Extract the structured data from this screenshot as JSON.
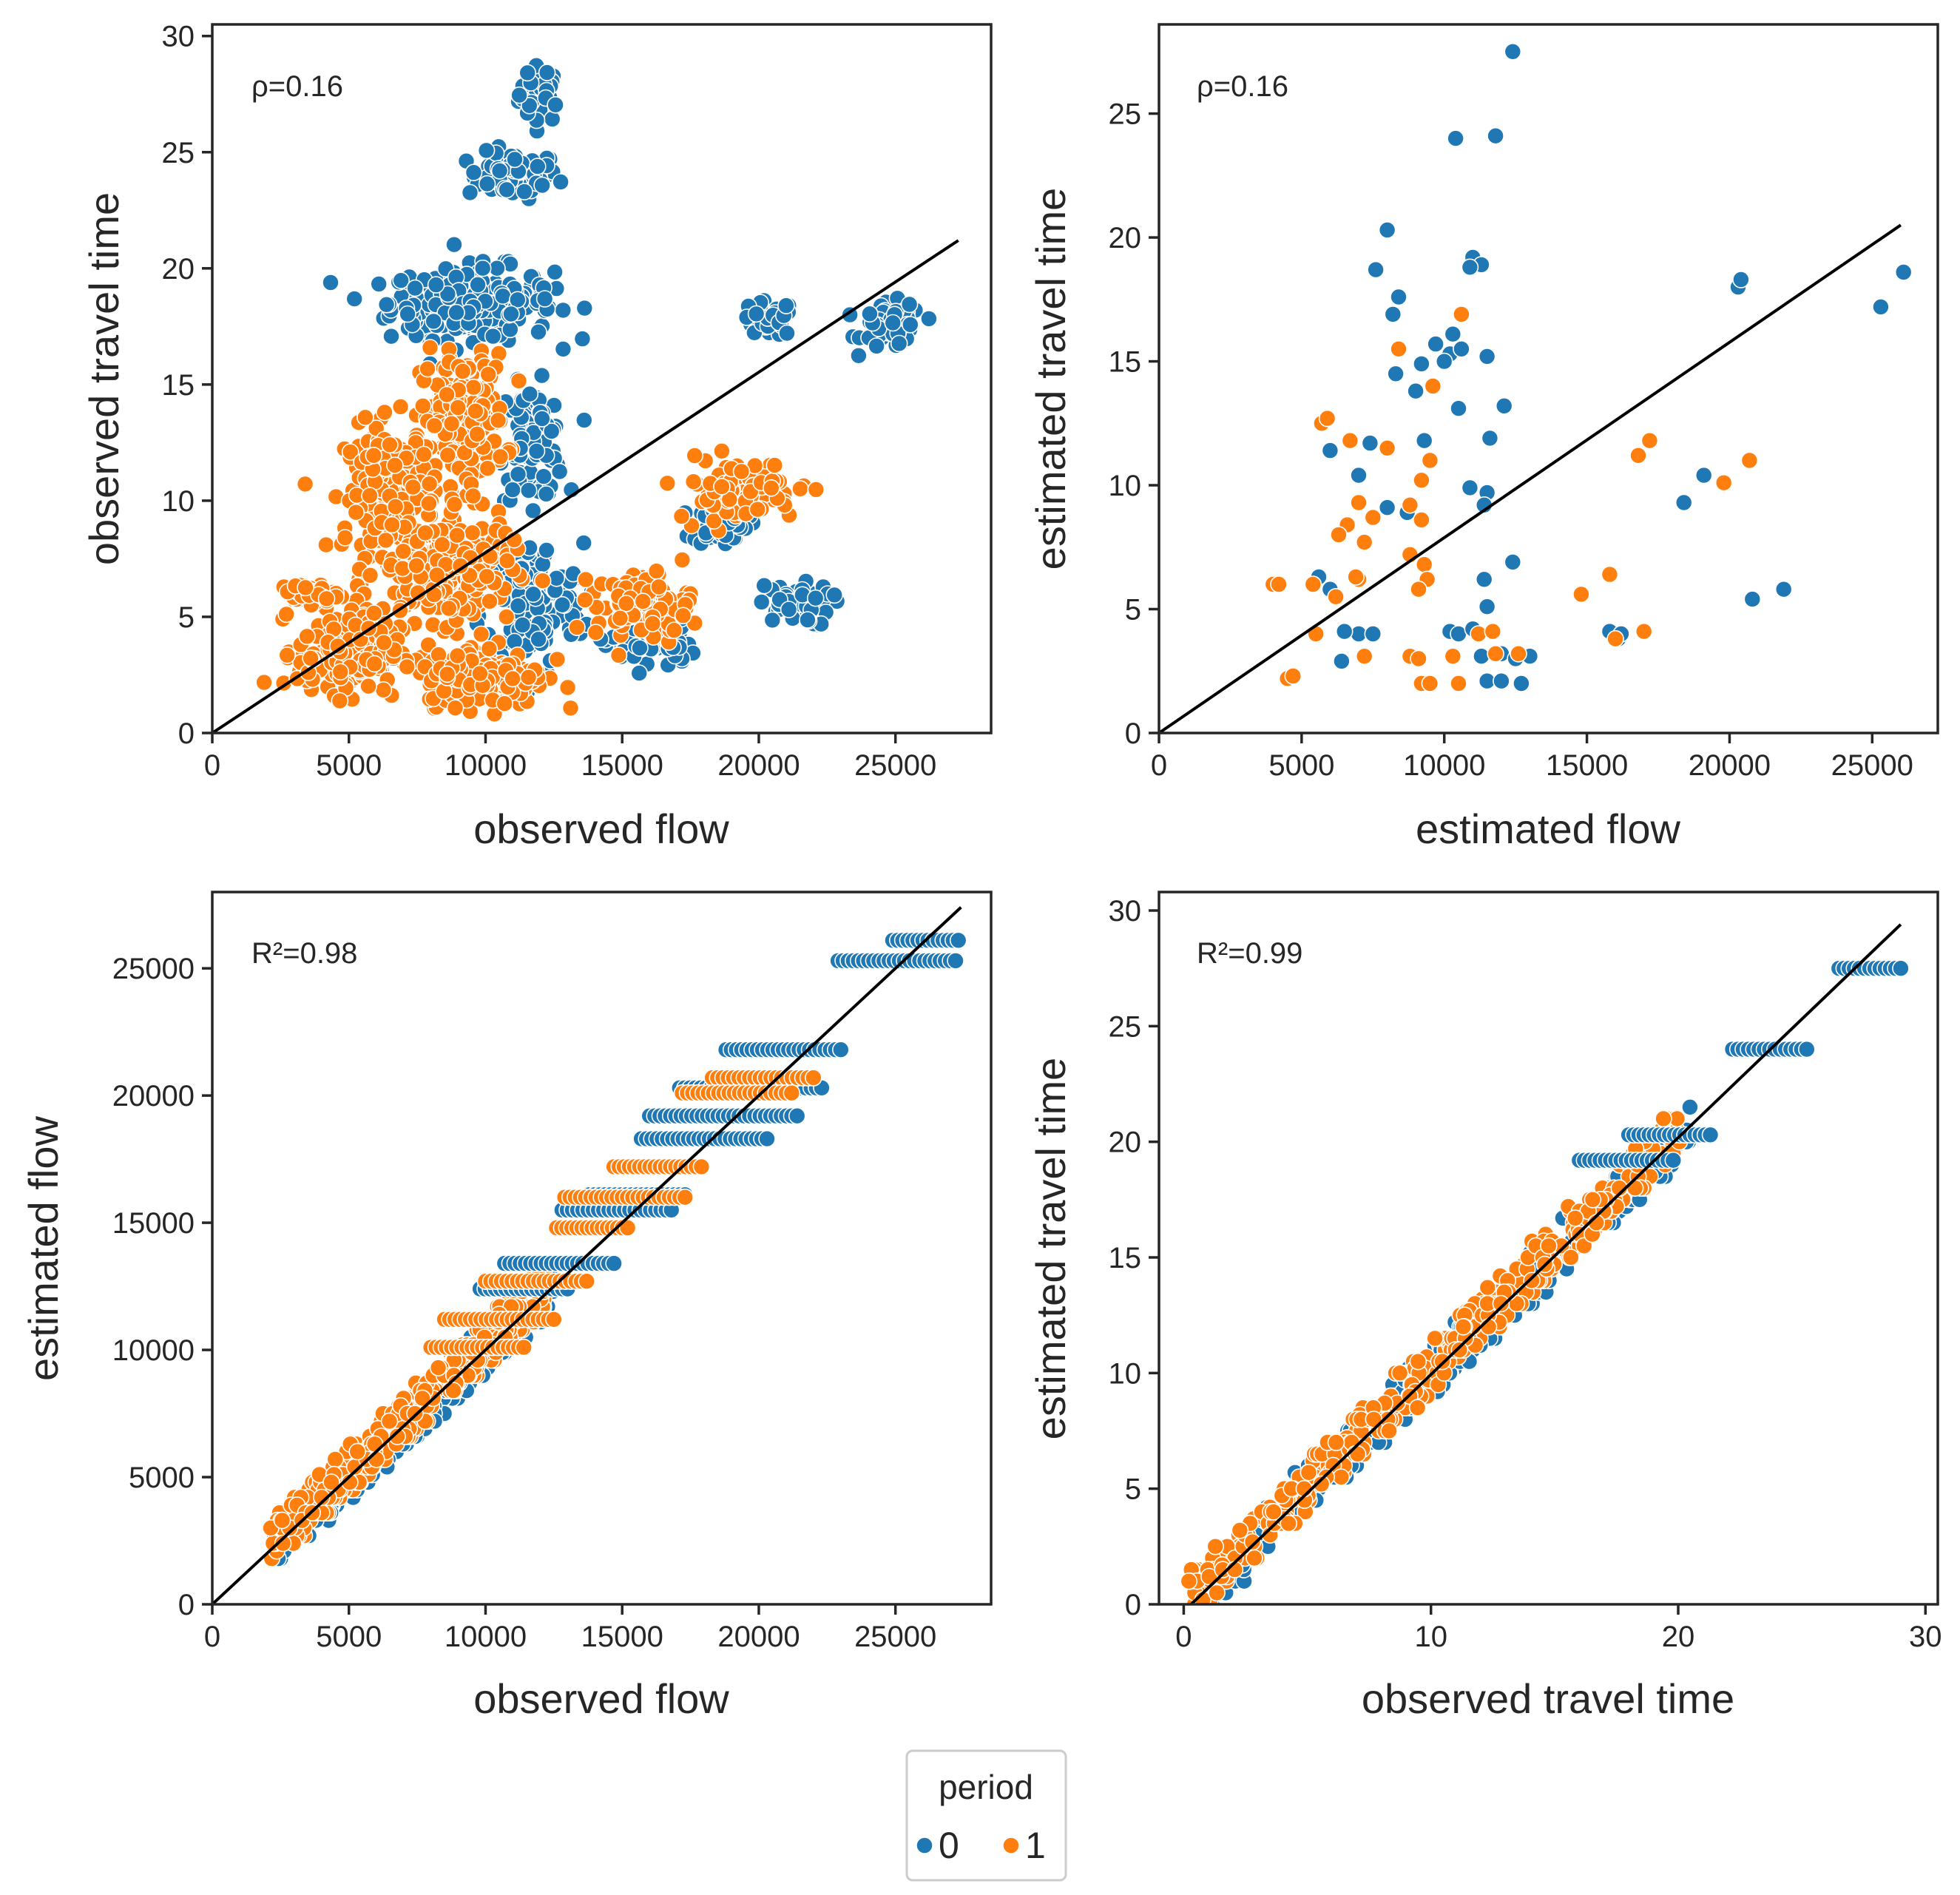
{
  "figure": {
    "legend": {
      "title": "period",
      "entries": [
        {
          "label": "0",
          "color": "#1f77b4"
        },
        {
          "label": "1",
          "color": "#ff7f0e"
        }
      ]
    }
  },
  "chart_data": [
    {
      "type": "scatter",
      "xlabel": "observed flow",
      "ylabel": "observed travel time",
      "annotation": "ρ=0.16",
      "xlim": [
        0,
        28500
      ],
      "ylim": [
        0,
        30.5
      ],
      "xticks": [
        0,
        5000,
        10000,
        15000,
        20000,
        25000
      ],
      "yticks": [
        0,
        5,
        10,
        15,
        20,
        25,
        30
      ],
      "grid": false,
      "reference_line": {
        "x": [
          0,
          27300
        ],
        "y": [
          0,
          21.2
        ]
      },
      "clusters": [
        {
          "period": 0,
          "cx": 12000,
          "cy": 27.5,
          "sx": 700,
          "sy": 1.1,
          "n": 40
        },
        {
          "period": 0,
          "cx": 11000,
          "cy": 24.0,
          "sx": 1500,
          "sy": 0.9,
          "n": 70
        },
        {
          "period": 0,
          "cx": 9500,
          "cy": 18.5,
          "sx": 2700,
          "sy": 1.4,
          "n": 260
        },
        {
          "period": 0,
          "cx": 20300,
          "cy": 17.8,
          "sx": 900,
          "sy": 0.7,
          "n": 45
        },
        {
          "period": 0,
          "cx": 24900,
          "cy": 17.5,
          "sx": 1000,
          "sy": 0.9,
          "n": 55
        },
        {
          "period": 0,
          "cx": 11700,
          "cy": 12.5,
          "sx": 1100,
          "sy": 2.2,
          "n": 90
        },
        {
          "period": 0,
          "cx": 11700,
          "cy": 5.5,
          "sx": 1700,
          "sy": 2.4,
          "n": 140
        },
        {
          "period": 0,
          "cx": 18600,
          "cy": 9.0,
          "sx": 900,
          "sy": 0.8,
          "n": 40
        },
        {
          "period": 0,
          "cx": 21300,
          "cy": 5.5,
          "sx": 1200,
          "sy": 0.8,
          "n": 60
        },
        {
          "period": 0,
          "cx": 16000,
          "cy": 3.8,
          "sx": 1500,
          "sy": 1.0,
          "n": 40
        },
        {
          "period": 1,
          "cx": 9200,
          "cy": 13.5,
          "sx": 1400,
          "sy": 2.5,
          "n": 200
        },
        {
          "period": 1,
          "cx": 6500,
          "cy": 10.5,
          "sx": 1500,
          "sy": 2.5,
          "n": 180
        },
        {
          "period": 1,
          "cx": 8500,
          "cy": 7.0,
          "sx": 2200,
          "sy": 2.0,
          "n": 250
        },
        {
          "period": 1,
          "cx": 5000,
          "cy": 3.5,
          "sx": 1700,
          "sy": 1.6,
          "n": 200
        },
        {
          "period": 1,
          "cx": 10000,
          "cy": 2.5,
          "sx": 2000,
          "sy": 1.2,
          "n": 200
        },
        {
          "period": 1,
          "cx": 19200,
          "cy": 10.5,
          "sx": 2000,
          "sy": 1.2,
          "n": 90
        },
        {
          "period": 1,
          "cx": 15800,
          "cy": 5.5,
          "sx": 1600,
          "sy": 1.3,
          "n": 100
        },
        {
          "period": 1,
          "cx": 3500,
          "cy": 6.0,
          "sx": 900,
          "sy": 0.4,
          "n": 50
        }
      ]
    },
    {
      "type": "scatter",
      "xlabel": "estimated flow",
      "ylabel": "estimated travel time",
      "annotation": "ρ=0.16",
      "xlim": [
        0,
        27300
      ],
      "ylim": [
        0,
        28.6
      ],
      "xticks": [
        0,
        5000,
        10000,
        15000,
        20000,
        25000
      ],
      "yticks": [
        0,
        5,
        10,
        15,
        20,
        25
      ],
      "grid": false,
      "reference_line": {
        "x": [
          0,
          26000
        ],
        "y": [
          0,
          20.5
        ]
      },
      "points_period_0": [
        [
          12400,
          27.5
        ],
        [
          10400,
          24.0
        ],
        [
          11800,
          24.1
        ],
        [
          8000,
          20.3
        ],
        [
          7600,
          18.7
        ],
        [
          8400,
          17.6
        ],
        [
          8200,
          16.9
        ],
        [
          11000,
          19.2
        ],
        [
          11300,
          18.9
        ],
        [
          10900,
          18.8
        ],
        [
          10300,
          16.1
        ],
        [
          9700,
          15.7
        ],
        [
          10200,
          15.3
        ],
        [
          9200,
          14.9
        ],
        [
          10000,
          15.0
        ],
        [
          10600,
          15.5
        ],
        [
          11500,
          15.2
        ],
        [
          9000,
          13.8
        ],
        [
          8300,
          14.5
        ],
        [
          10500,
          13.1
        ],
        [
          12100,
          13.2
        ],
        [
          9300,
          11.8
        ],
        [
          11600,
          11.9
        ],
        [
          7400,
          11.7
        ],
        [
          6000,
          11.4
        ],
        [
          7000,
          10.4
        ],
        [
          10900,
          9.9
        ],
        [
          11500,
          9.7
        ],
        [
          11400,
          9.2
        ],
        [
          8000,
          9.1
        ],
        [
          8700,
          8.9
        ],
        [
          12400,
          6.9
        ],
        [
          11400,
          6.2
        ],
        [
          11500,
          5.1
        ],
        [
          5600,
          6.3
        ],
        [
          6000,
          5.8
        ],
        [
          6400,
          2.9
        ],
        [
          7000,
          4.0
        ],
        [
          6500,
          4.1
        ],
        [
          7500,
          4.0
        ],
        [
          10200,
          4.1
        ],
        [
          10500,
          4.0
        ],
        [
          11000,
          4.2
        ],
        [
          11300,
          3.1
        ],
        [
          12000,
          3.2
        ],
        [
          12500,
          3.0
        ],
        [
          13000,
          3.1
        ],
        [
          11500,
          2.1
        ],
        [
          12000,
          2.1
        ],
        [
          12700,
          2.0
        ],
        [
          15800,
          4.1
        ],
        [
          16100,
          3.8
        ],
        [
          16200,
          4.0
        ],
        [
          18400,
          9.3
        ],
        [
          19100,
          10.4
        ],
        [
          20300,
          18.0
        ],
        [
          20400,
          18.3
        ],
        [
          25300,
          17.2
        ],
        [
          26100,
          18.6
        ],
        [
          21900,
          5.8
        ],
        [
          20800,
          5.4
        ]
      ],
      "points_period_1": [
        [
          10600,
          16.9
        ],
        [
          8400,
          15.5
        ],
        [
          9600,
          14.0
        ],
        [
          5700,
          12.5
        ],
        [
          5900,
          12.7
        ],
        [
          6700,
          11.8
        ],
        [
          8000,
          11.5
        ],
        [
          9500,
          11.0
        ],
        [
          9200,
          10.2
        ],
        [
          7000,
          9.3
        ],
        [
          6600,
          8.4
        ],
        [
          7500,
          8.7
        ],
        [
          8800,
          9.2
        ],
        [
          9200,
          8.6
        ],
        [
          6300,
          8.0
        ],
        [
          7200,
          7.7
        ],
        [
          8800,
          7.2
        ],
        [
          9300,
          6.8
        ],
        [
          9400,
          6.2
        ],
        [
          9100,
          5.8
        ],
        [
          7000,
          6.2
        ],
        [
          6900,
          6.3
        ],
        [
          6200,
          5.5
        ],
        [
          5400,
          6.0
        ],
        [
          4000,
          6.0
        ],
        [
          4200,
          6.0
        ],
        [
          5500,
          4.0
        ],
        [
          7200,
          3.1
        ],
        [
          8800,
          3.1
        ],
        [
          9100,
          3.0
        ],
        [
          9200,
          2.0
        ],
        [
          9500,
          2.0
        ],
        [
          10300,
          3.1
        ],
        [
          10500,
          2.0
        ],
        [
          11200,
          4.0
        ],
        [
          11700,
          4.1
        ],
        [
          11800,
          3.2
        ],
        [
          12600,
          3.2
        ],
        [
          4500,
          2.2
        ],
        [
          4700,
          2.3
        ],
        [
          14800,
          5.6
        ],
        [
          15800,
          6.4
        ],
        [
          16000,
          3.8
        ],
        [
          17000,
          4.1
        ],
        [
          16800,
          11.2
        ],
        [
          17200,
          11.8
        ],
        [
          19800,
          10.1
        ],
        [
          20700,
          11.0
        ]
      ]
    },
    {
      "type": "scatter",
      "xlabel": "observed flow",
      "ylabel": "estimated flow",
      "annotation": "R²=0.98",
      "xlim": [
        0,
        28500
      ],
      "ylim": [
        0,
        28000
      ],
      "xticks": [
        0,
        5000,
        10000,
        15000,
        20000,
        25000
      ],
      "yticks": [
        0,
        5000,
        10000,
        15000,
        20000,
        25000
      ],
      "grid": false,
      "reference_line": {
        "x": [
          0,
          27400
        ],
        "y": [
          0,
          27400
        ]
      },
      "levels_period_0": [
        [
          26100,
          24900,
          27300
        ],
        [
          25300,
          22900,
          27200
        ],
        [
          21800,
          18800,
          23000
        ],
        [
          20300,
          17100,
          22300
        ],
        [
          19200,
          16000,
          21400
        ],
        [
          18300,
          15700,
          20300
        ],
        [
          16100,
          13800,
          17300
        ],
        [
          15500,
          12800,
          16800
        ],
        [
          13400,
          10700,
          14700
        ],
        [
          12400,
          9800,
          13000
        ]
      ],
      "levels_period_1": [
        [
          20700,
          18300,
          22000
        ],
        [
          20100,
          17200,
          21200
        ],
        [
          17200,
          14700,
          17900
        ],
        [
          16000,
          12900,
          17300
        ],
        [
          14800,
          12600,
          15200
        ],
        [
          12700,
          10000,
          13700
        ],
        [
          11200,
          8500,
          12500
        ],
        [
          10100,
          8000,
          11400
        ]
      ],
      "diagonal_band": {
        "x_from": 2400,
        "x_to": 12500,
        "spread_x": 1800
      }
    },
    {
      "type": "scatter",
      "xlabel": "observed travel time",
      "ylabel": "estimated travel time",
      "annotation": "R²=0.99",
      "xlim": [
        -1,
        30.5
      ],
      "ylim": [
        0,
        30.8
      ],
      "xticks": [
        0,
        10,
        20,
        30
      ],
      "yticks": [
        0,
        5,
        10,
        15,
        20,
        25,
        30
      ],
      "grid": false,
      "reference_line": {
        "x": [
          0.3,
          29
        ],
        "y": [
          0,
          29.4
        ]
      },
      "levels_period_0": [
        [
          27.5,
          26.5,
          29.0
        ],
        [
          24.0,
          22.2,
          25.2
        ],
        [
          20.3,
          18.0,
          21.3
        ],
        [
          19.2,
          16.0,
          19.8
        ]
      ],
      "diagonal_band": {
        "x_from": 0.5,
        "x_to": 20.5,
        "spread_x": 2.0
      }
    }
  ]
}
